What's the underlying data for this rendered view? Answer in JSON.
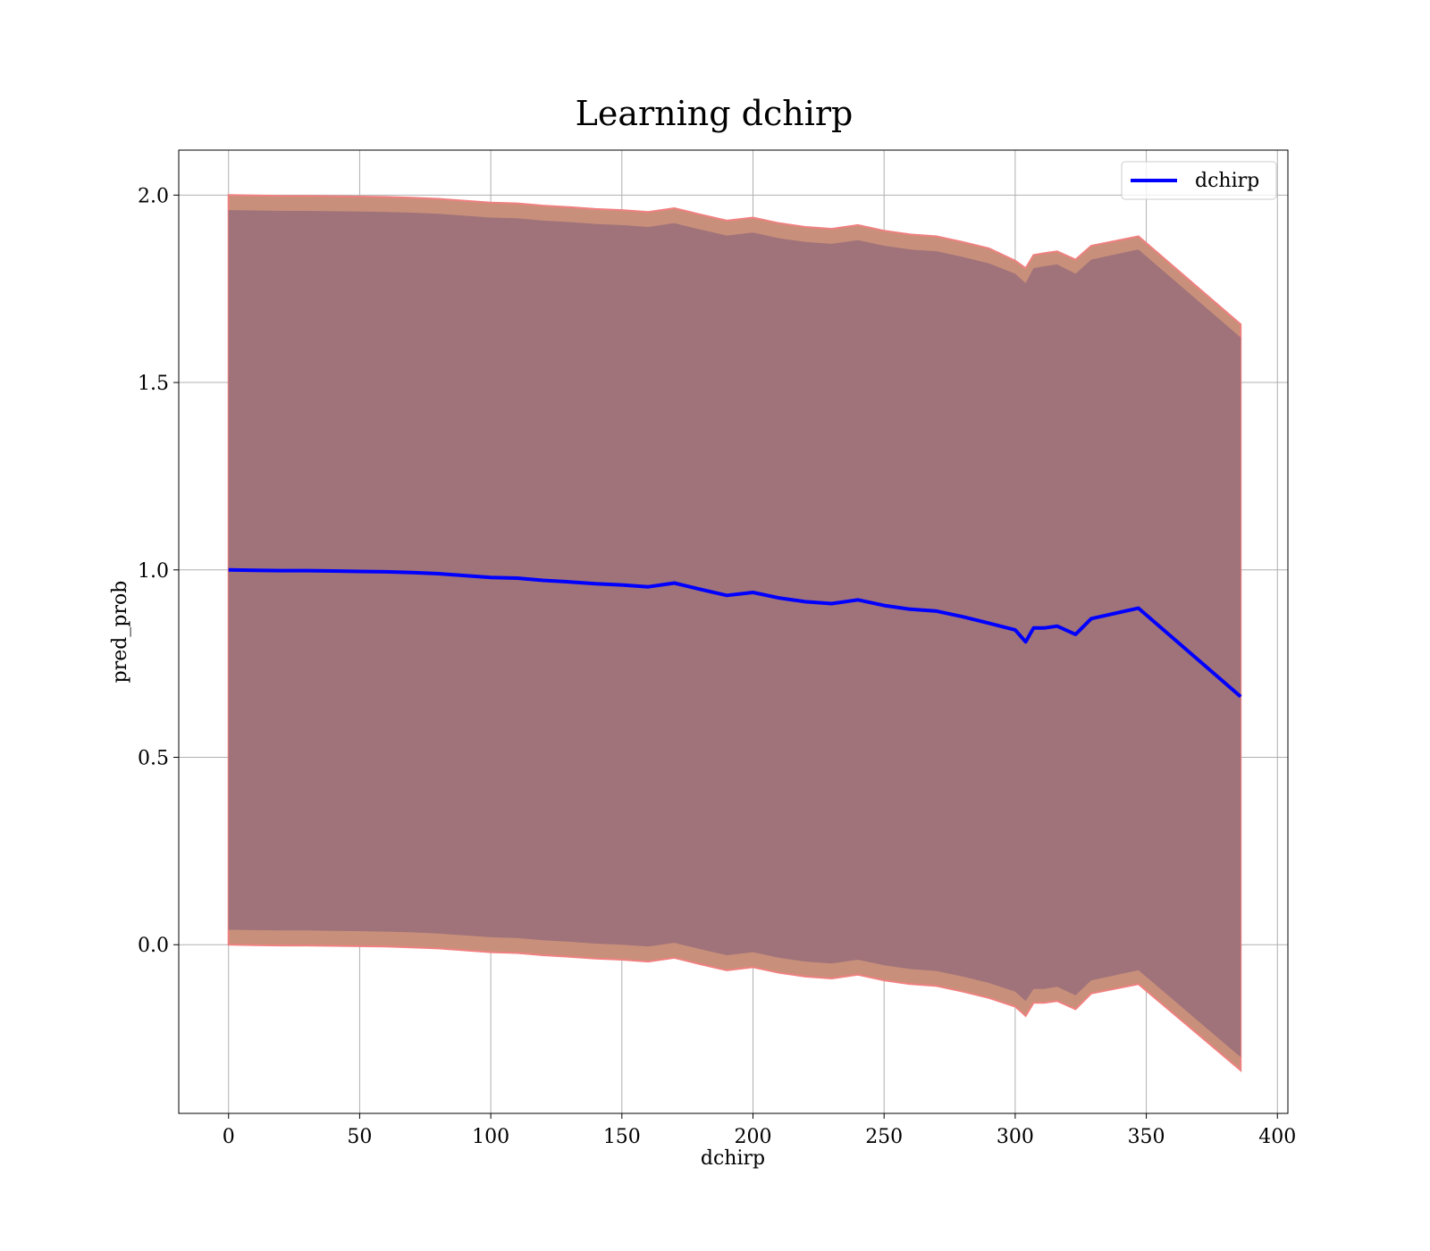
{
  "chart_data": {
    "type": "line",
    "title": "Learning dchirp",
    "xlabel": "dchirp",
    "ylabel": "pred_prob",
    "xlim": [
      -19,
      404
    ],
    "ylim": [
      -0.45,
      2.12
    ],
    "xticks": [
      0,
      50,
      100,
      150,
      200,
      250,
      300,
      350,
      400
    ],
    "yticks": [
      0.0,
      0.5,
      1.0,
      1.5,
      2.0
    ],
    "xtick_labels": [
      "0",
      "50",
      "100",
      "150",
      "200",
      "250",
      "300",
      "350",
      "400"
    ],
    "ytick_labels": [
      "0.0",
      "0.5",
      "1.0",
      "1.5",
      "2.0"
    ],
    "grid": true,
    "legend": {
      "placement": "upper-right",
      "entries": [
        "dchirp"
      ]
    },
    "colors": {
      "line": "#0000ff",
      "outer_band": "#c8907a",
      "outer_band_edge": "#f08080",
      "inner_band": "#a0727a"
    },
    "series": [
      {
        "name": "dchirp",
        "x": [
          0,
          10,
          20,
          30,
          40,
          50,
          60,
          70,
          80,
          90,
          100,
          110,
          120,
          130,
          140,
          150,
          160,
          170,
          180,
          190,
          200,
          210,
          220,
          230,
          240,
          250,
          260,
          270,
          280,
          290,
          300,
          304,
          307,
          311,
          316,
          323,
          329,
          347,
          386
        ],
        "y": [
          1.0,
          0.999,
          0.998,
          0.998,
          0.997,
          0.996,
          0.995,
          0.993,
          0.99,
          0.985,
          0.98,
          0.978,
          0.972,
          0.968,
          0.963,
          0.96,
          0.955,
          0.965,
          0.948,
          0.932,
          0.94,
          0.925,
          0.915,
          0.91,
          0.92,
          0.905,
          0.895,
          0.89,
          0.875,
          0.858,
          0.84,
          0.808,
          0.845,
          0.845,
          0.85,
          0.828,
          0.87,
          0.898,
          0.662
        ]
      }
    ],
    "bands": [
      {
        "role": "outer",
        "x": [
          0,
          10,
          20,
          30,
          40,
          50,
          60,
          70,
          80,
          90,
          100,
          110,
          120,
          130,
          140,
          150,
          160,
          170,
          180,
          190,
          200,
          210,
          220,
          230,
          240,
          250,
          260,
          270,
          280,
          290,
          300,
          304,
          307,
          311,
          316,
          323,
          329,
          347,
          386
        ],
        "upper": [
          2.0,
          1.999,
          1.998,
          1.998,
          1.997,
          1.996,
          1.995,
          1.993,
          1.99,
          1.985,
          1.98,
          1.978,
          1.972,
          1.968,
          1.963,
          1.96,
          1.955,
          1.965,
          1.948,
          1.932,
          1.94,
          1.925,
          1.915,
          1.91,
          1.92,
          1.905,
          1.895,
          1.89,
          1.875,
          1.858,
          1.825,
          1.805,
          1.84,
          1.845,
          1.85,
          1.828,
          1.865,
          1.89,
          1.655
        ],
        "lower": [
          0.0,
          -0.001,
          -0.002,
          -0.002,
          -0.003,
          -0.004,
          -0.005,
          -0.007,
          -0.01,
          -0.015,
          -0.02,
          -0.022,
          -0.028,
          -0.032,
          -0.037,
          -0.04,
          -0.045,
          -0.035,
          -0.052,
          -0.068,
          -0.06,
          -0.075,
          -0.085,
          -0.09,
          -0.08,
          -0.095,
          -0.105,
          -0.11,
          -0.125,
          -0.142,
          -0.165,
          -0.19,
          -0.155,
          -0.155,
          -0.15,
          -0.172,
          -0.13,
          -0.105,
          -0.335
        ]
      },
      {
        "role": "inner",
        "x": [
          0,
          10,
          20,
          30,
          40,
          50,
          60,
          70,
          80,
          90,
          100,
          110,
          120,
          130,
          140,
          150,
          160,
          170,
          180,
          190,
          200,
          210,
          220,
          230,
          240,
          250,
          260,
          270,
          280,
          290,
          300,
          304,
          307,
          311,
          316,
          323,
          329,
          347,
          386
        ],
        "upper": [
          1.96,
          1.959,
          1.958,
          1.958,
          1.957,
          1.956,
          1.955,
          1.953,
          1.95,
          1.945,
          1.94,
          1.938,
          1.932,
          1.928,
          1.923,
          1.92,
          1.915,
          1.925,
          1.908,
          1.892,
          1.9,
          1.885,
          1.875,
          1.87,
          1.88,
          1.865,
          1.855,
          1.85,
          1.835,
          1.818,
          1.79,
          1.765,
          1.805,
          1.81,
          1.815,
          1.79,
          1.828,
          1.855,
          1.62
        ],
        "lower": [
          0.04,
          0.039,
          0.038,
          0.038,
          0.037,
          0.036,
          0.035,
          0.033,
          0.03,
          0.025,
          0.02,
          0.018,
          0.012,
          0.008,
          0.003,
          0.0,
          -0.005,
          0.005,
          -0.012,
          -0.028,
          -0.02,
          -0.035,
          -0.045,
          -0.05,
          -0.04,
          -0.055,
          -0.065,
          -0.07,
          -0.085,
          -0.102,
          -0.125,
          -0.15,
          -0.118,
          -0.118,
          -0.112,
          -0.135,
          -0.095,
          -0.068,
          -0.3
        ]
      }
    ]
  }
}
